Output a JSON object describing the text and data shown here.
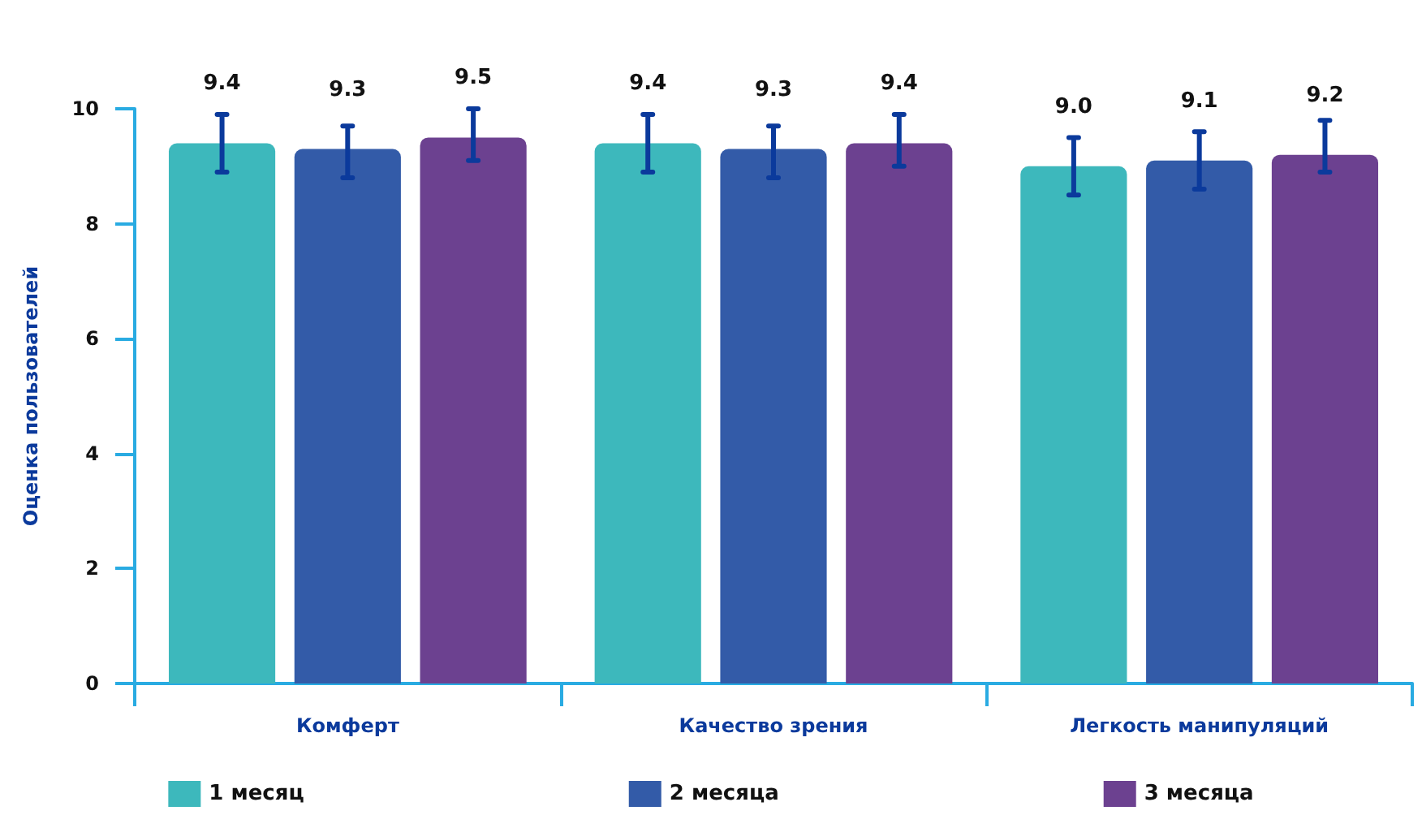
{
  "chart_data": {
    "type": "bar",
    "ylabel": "Оценка пользователей",
    "categories": [
      "Комферт",
      "Качество зрения",
      "Легкость манипуляций"
    ],
    "series": [
      {
        "name": "1 месяц",
        "color": "#3db8bc",
        "values": [
          9.4,
          9.4,
          9.0
        ],
        "value_labels": [
          "9.4",
          "9.4",
          "9.0"
        ],
        "errors": [
          [
            8.9,
            9.9
          ],
          [
            8.9,
            9.9
          ],
          [
            8.5,
            9.5
          ]
        ]
      },
      {
        "name": "2 месяца",
        "color": "#335ba8",
        "values": [
          9.3,
          9.3,
          9.1
        ],
        "value_labels": [
          "9.3",
          "9.3",
          "9.1"
        ],
        "errors": [
          [
            8.8,
            9.7
          ],
          [
            8.8,
            9.7
          ],
          [
            8.6,
            9.6
          ]
        ]
      },
      {
        "name": "3 месяца",
        "color": "#6c4190",
        "values": [
          9.5,
          9.4,
          9.2
        ],
        "value_labels": [
          "9.5",
          "9.4",
          "9.2"
        ],
        "errors": [
          [
            9.1,
            10.0
          ],
          [
            9.0,
            9.9
          ],
          [
            8.9,
            9.8
          ]
        ]
      }
    ],
    "ylim": [
      0,
      10
    ],
    "yticks": [
      0,
      2,
      4,
      6,
      8,
      10
    ],
    "grid": false,
    "legend": "bottom"
  }
}
